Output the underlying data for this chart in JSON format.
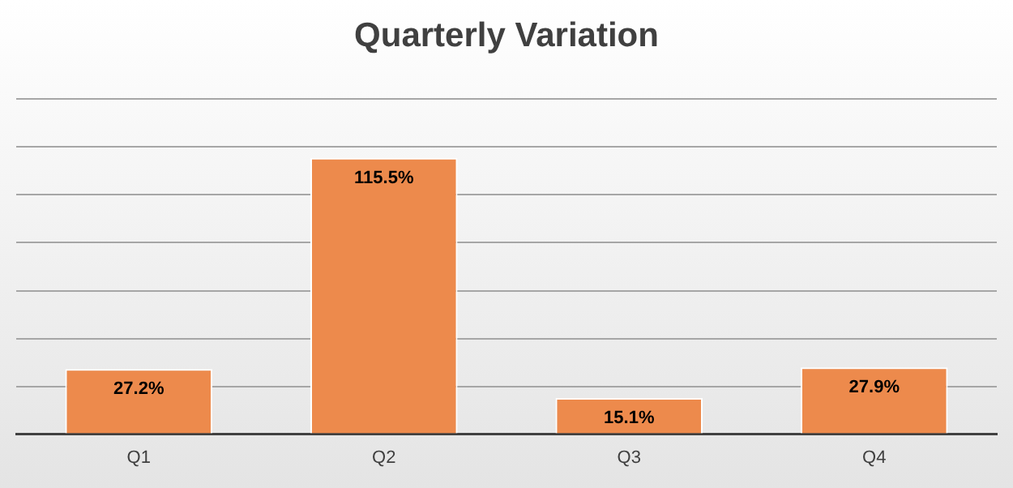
{
  "chart_data": {
    "type": "bar",
    "title": "Quarterly Variation",
    "categories": [
      "Q1",
      "Q2",
      "Q3",
      "Q4"
    ],
    "values": [
      27.2,
      115.5,
      15.1,
      27.9
    ],
    "value_labels": [
      "27.2%",
      "115.5%",
      "15.1%",
      "27.9%"
    ],
    "color": "#ed8a4c",
    "ylim": [
      0,
      140
    ],
    "tick_labels": "x",
    "grid": "y",
    "legend": false
  }
}
